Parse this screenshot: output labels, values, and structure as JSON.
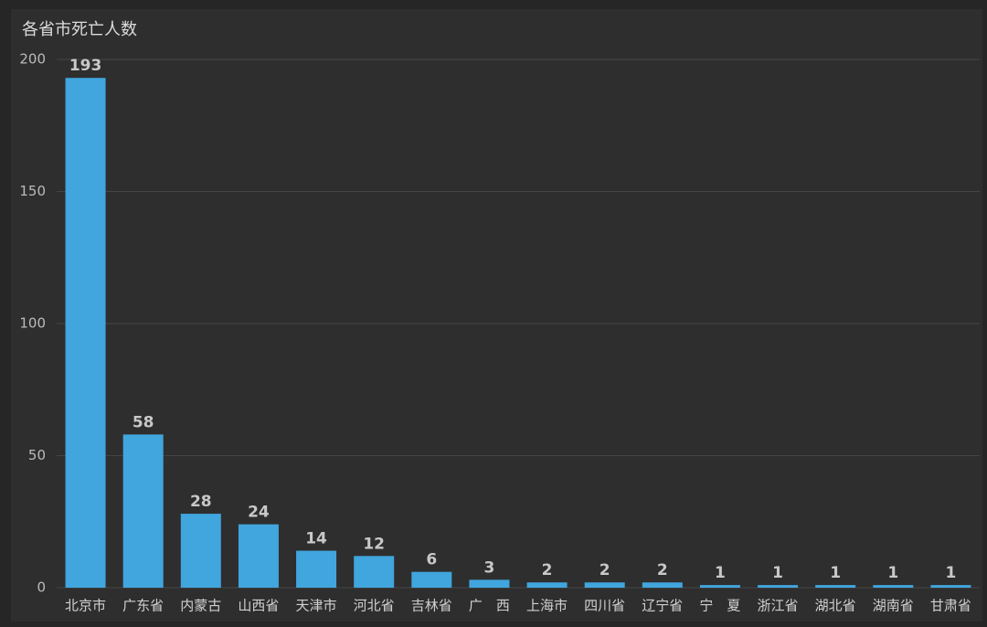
{
  "chart_data": {
    "type": "bar",
    "title": "各省市死亡人数",
    "categories": [
      "北京市",
      "广东省",
      "内蒙古",
      "山西省",
      "天津市",
      "河北省",
      "吉林省",
      "广　西",
      "上海市",
      "四川省",
      "辽宁省",
      "宁　夏",
      "浙江省",
      "湖北省",
      "湖南省",
      "甘肃省"
    ],
    "values": [
      193,
      58,
      28,
      24,
      14,
      12,
      6,
      3,
      2,
      2,
      2,
      1,
      1,
      1,
      1,
      1
    ],
    "color": "#41a5de",
    "ylim": [
      0,
      200
    ],
    "yticks": [
      0,
      50,
      100,
      150,
      200
    ],
    "grid": true,
    "show_value_labels": true
  }
}
